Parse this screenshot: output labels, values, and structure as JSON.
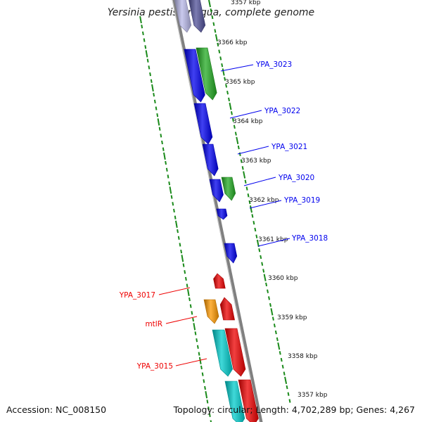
{
  "title": "Yersinia pestis Antiqua, complete genome",
  "accession_label": "Accession: NC_008150",
  "stats_label": "Topology: circular; Length: 4,702,289 bp; Genes: 4,267",
  "colors": {
    "backbone": "#808080",
    "tick_green": "#1a8a1a",
    "blue": "#0000ee",
    "green": "#22aa22",
    "red": "#ee0000",
    "orange": "#ff9900",
    "cyan": "#00cccc",
    "lavender": "#b8b8e8",
    "slate": "#505098"
  },
  "kbp_ticks": [
    "3357 kbp",
    "3366 kbp",
    "3365 kbp",
    "3364 kbp",
    "3363 kbp",
    "3362 kbp",
    "3361 kbp",
    "3360 kbp",
    "3359 kbp",
    "3358 kbp",
    "3357 kbp"
  ],
  "gene_labels": [
    "YPA_3023",
    "YPA_3022",
    "YPA_3021",
    "YPA_3020",
    "YPA_3019",
    "YPA_3018",
    "YPA_3017",
    "mtlR",
    "YPA_3015"
  ]
}
